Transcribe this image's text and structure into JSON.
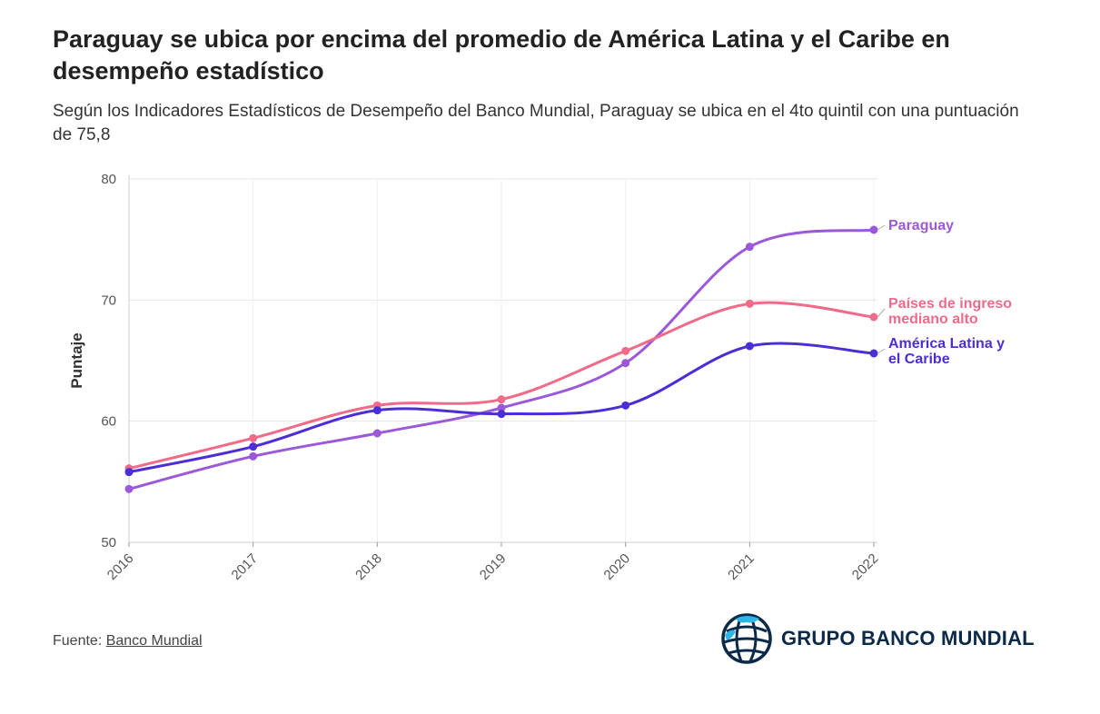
{
  "header": {
    "title": "Paraguay se ubica por encima del promedio de América Latina y el Caribe en desempeño estadístico",
    "subtitle": "Según los Indicadores Estadísticos de Desempeño del Banco Mundial, Paraguay se ubica en el 4to quintil con una puntuación de 75,8"
  },
  "chart_data": {
    "type": "line",
    "x": [
      2016,
      2017,
      2018,
      2019,
      2020,
      2021,
      2022
    ],
    "xtick_labels": [
      "2016",
      "2017",
      "2018",
      "2019",
      "2020",
      "2021",
      "2022"
    ],
    "ylabel": "Puntaje",
    "xlabel": "",
    "ylim": [
      50,
      80
    ],
    "yticks": [
      50,
      60,
      70,
      80
    ],
    "ytick_labels": [
      "50",
      "60",
      "70",
      "80"
    ],
    "grid": true,
    "legend": "direct labels at right end of lines",
    "series": [
      {
        "name": "Paraguay",
        "label_lines": [
          "Paraguay"
        ],
        "color": "#9b59d9",
        "values": [
          54.4,
          57.1,
          59.0,
          61.1,
          64.8,
          74.4,
          75.8
        ]
      },
      {
        "name": "Países de ingreso mediano alto",
        "label_lines": [
          "Países de ingreso",
          "mediano alto"
        ],
        "color": "#f06b8a",
        "values": [
          56.1,
          58.6,
          61.3,
          61.8,
          65.8,
          69.7,
          68.6
        ]
      },
      {
        "name": "América Latina y el Caribe",
        "label_lines": [
          "América Latina y",
          "el Caribe"
        ],
        "color": "#4a2fd6",
        "values": [
          55.8,
          57.9,
          60.9,
          60.6,
          61.3,
          66.2,
          65.6
        ]
      }
    ]
  },
  "footer": {
    "source_prefix": "Fuente: ",
    "source_link": "Banco Mundial",
    "logo_text": "GRUPO BANCO MUNDIAL"
  }
}
